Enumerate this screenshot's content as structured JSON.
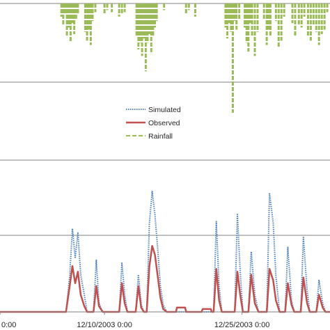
{
  "chart_data": {
    "type": "line",
    "title": "",
    "xlabel": "",
    "ylabel": "",
    "grid": true,
    "legend_placement": "center",
    "colors": {
      "simulated": "#4f81bd",
      "observed": "#c0504d",
      "rainfall": "#9bbb59",
      "grid": "#808080"
    },
    "x_tick_labels": [
      {
        "label": "0:00",
        "day": 0
      },
      {
        "label": "12/10/2003 0:00",
        "day": 11.4
      },
      {
        "label": "12/25/2003 0:00",
        "day": 26.4
      }
    ],
    "x_range_days": [
      0,
      36
    ],
    "discharge_panel": {
      "series": [
        {
          "name": "Simulated",
          "style": "dotted",
          "points": [
            [
              0,
              0
            ],
            [
              7.2,
              0
            ],
            [
              7.6,
              0.25
            ],
            [
              7.9,
              0.58
            ],
            [
              8.2,
              0.38
            ],
            [
              8.5,
              0.55
            ],
            [
              8.8,
              0.26
            ],
            [
              9.2,
              0.12
            ],
            [
              9.5,
              0
            ],
            [
              10.2,
              0
            ],
            [
              10.5,
              0.36
            ],
            [
              10.8,
              0.06
            ],
            [
              11.2,
              0
            ],
            [
              13.0,
              0
            ],
            [
              13.3,
              0.34
            ],
            [
              13.6,
              0.12
            ],
            [
              13.9,
              0
            ],
            [
              14.8,
              0
            ],
            [
              15.1,
              0.26
            ],
            [
              15.4,
              0.05
            ],
            [
              15.7,
              0
            ],
            [
              16.0,
              0
            ],
            [
              16.3,
              0.62
            ],
            [
              16.6,
              0.84
            ],
            [
              16.9,
              0.68
            ],
            [
              17.2,
              0.44
            ],
            [
              17.5,
              0.18
            ],
            [
              17.8,
              0.05
            ],
            [
              18.2,
              0
            ],
            [
              23.3,
              0
            ],
            [
              23.6,
              0.63
            ],
            [
              23.9,
              0.18
            ],
            [
              24.2,
              0
            ],
            [
              25.6,
              0
            ],
            [
              25.9,
              0.68
            ],
            [
              26.2,
              0.28
            ],
            [
              26.5,
              0
            ],
            [
              27.1,
              0
            ],
            [
              27.4,
              0.42
            ],
            [
              27.8,
              0.12
            ],
            [
              28.2,
              0
            ],
            [
              29.1,
              0
            ],
            [
              29.4,
              0.83
            ],
            [
              29.8,
              0.62
            ],
            [
              30.1,
              0.25
            ],
            [
              30.5,
              0
            ],
            [
              31.1,
              0
            ],
            [
              31.4,
              0.45
            ],
            [
              31.8,
              0.08
            ],
            [
              32.1,
              0
            ],
            [
              32.8,
              0
            ],
            [
              33.1,
              0.52
            ],
            [
              33.5,
              0.15
            ],
            [
              33.8,
              0
            ],
            [
              34.5,
              0
            ],
            [
              34.8,
              0.22
            ],
            [
              35.2,
              0.06
            ],
            [
              35.5,
              0
            ],
            [
              36,
              0
            ]
          ]
        },
        {
          "name": "Observed",
          "style": "solid",
          "points": [
            [
              0,
              0
            ],
            [
              7.2,
              0
            ],
            [
              7.6,
              0.18
            ],
            [
              7.9,
              0.32
            ],
            [
              8.2,
              0.2
            ],
            [
              8.5,
              0.28
            ],
            [
              8.8,
              0.12
            ],
            [
              9.2,
              0.04
            ],
            [
              9.5,
              0
            ],
            [
              10.2,
              0
            ],
            [
              10.5,
              0.18
            ],
            [
              10.8,
              0.04
            ],
            [
              11.2,
              0
            ],
            [
              13.0,
              0
            ],
            [
              13.3,
              0.2
            ],
            [
              13.6,
              0.06
            ],
            [
              13.9,
              0
            ],
            [
              14.8,
              0
            ],
            [
              15.1,
              0.18
            ],
            [
              15.4,
              0.03
            ],
            [
              15.7,
              0
            ],
            [
              16.0,
              0
            ],
            [
              16.3,
              0.32
            ],
            [
              16.6,
              0.46
            ],
            [
              16.9,
              0.4
            ],
            [
              17.2,
              0.25
            ],
            [
              17.5,
              0.1
            ],
            [
              17.8,
              0.02
            ],
            [
              18.2,
              0
            ],
            [
              19.2,
              0
            ],
            [
              19.3,
              0.03
            ],
            [
              20.2,
              0.03
            ],
            [
              20.3,
              0
            ],
            [
              22.0,
              0
            ],
            [
              22.1,
              0.02
            ],
            [
              23.0,
              0.02
            ],
            [
              23.1,
              0
            ],
            [
              23.3,
              0
            ],
            [
              23.6,
              0.3
            ],
            [
              23.9,
              0.08
            ],
            [
              24.2,
              0
            ],
            [
              25.6,
              0
            ],
            [
              25.9,
              0.28
            ],
            [
              26.2,
              0.12
            ],
            [
              26.5,
              0
            ],
            [
              27.1,
              0
            ],
            [
              27.4,
              0.26
            ],
            [
              27.8,
              0.06
            ],
            [
              28.2,
              0
            ],
            [
              29.1,
              0
            ],
            [
              29.4,
              0.3
            ],
            [
              29.8,
              0.22
            ],
            [
              30.1,
              0.08
            ],
            [
              30.5,
              0
            ],
            [
              31.1,
              0
            ],
            [
              31.4,
              0.2
            ],
            [
              31.8,
              0.05
            ],
            [
              32.1,
              0
            ],
            [
              32.8,
              0
            ],
            [
              33.1,
              0.24
            ],
            [
              33.5,
              0.06
            ],
            [
              33.8,
              0
            ],
            [
              34.5,
              0
            ],
            [
              34.8,
              0.12
            ],
            [
              35.2,
              0.03
            ],
            [
              35.5,
              0
            ],
            [
              36,
              0
            ]
          ]
        }
      ]
    },
    "rainfall_panel": {
      "series": [
        {
          "name": "Rainfall",
          "style": "dashed",
          "bars": [
            [
              6.7,
              0.12
            ],
            [
              6.9,
              0.2
            ],
            [
              7.1,
              0.1
            ],
            [
              7.3,
              0.3
            ],
            [
              7.5,
              0.22
            ],
            [
              7.7,
              0.35
            ],
            [
              7.9,
              0.18
            ],
            [
              8.1,
              0.28
            ],
            [
              8.3,
              0.14
            ],
            [
              8.5,
              0.1
            ],
            [
              9.3,
              0.26
            ],
            [
              9.5,
              0.34
            ],
            [
              9.7,
              0.24
            ],
            [
              9.9,
              0.38
            ],
            [
              10.1,
              0.16
            ],
            [
              10.4,
              0.08
            ],
            [
              11.4,
              0.1
            ],
            [
              11.7,
              0.06
            ],
            [
              12.2,
              0.08
            ],
            [
              13.0,
              0.12
            ],
            [
              13.3,
              0.1
            ],
            [
              13.6,
              0.08
            ],
            [
              14.9,
              0.3
            ],
            [
              15.1,
              0.42
            ],
            [
              15.3,
              0.36
            ],
            [
              15.5,
              0.48
            ],
            [
              15.7,
              0.32
            ],
            [
              15.9,
              0.62
            ],
            [
              16.1,
              0.36
            ],
            [
              16.3,
              0.28
            ],
            [
              16.5,
              0.46
            ],
            [
              16.7,
              0.3
            ],
            [
              16.9,
              0.22
            ],
            [
              17.1,
              0.16
            ],
            [
              17.9,
              0.06
            ],
            [
              20.3,
              0.1
            ],
            [
              20.6,
              0.06
            ],
            [
              21.3,
              0.12
            ],
            [
              24.6,
              0.22
            ],
            [
              24.8,
              0.32
            ],
            [
              25.0,
              0.18
            ],
            [
              25.2,
              0.26
            ],
            [
              25.4,
              1.0
            ],
            [
              25.6,
              0.16
            ],
            [
              25.8,
              0.24
            ],
            [
              26.1,
              0.14
            ],
            [
              26.7,
              0.22
            ],
            [
              26.9,
              0.36
            ],
            [
              27.1,
              0.44
            ],
            [
              27.3,
              0.18
            ],
            [
              27.5,
              0.3
            ],
            [
              27.8,
              0.48
            ],
            [
              28.1,
              0.26
            ],
            [
              28.8,
              0.14
            ],
            [
              29.1,
              0.38
            ],
            [
              29.3,
              0.24
            ],
            [
              29.5,
              0.3
            ],
            [
              30.1,
              0.16
            ],
            [
              30.4,
              0.4
            ],
            [
              30.7,
              0.34
            ],
            [
              31.0,
              0.12
            ],
            [
              31.9,
              0.18
            ],
            [
              32.2,
              0.3
            ],
            [
              32.6,
              0.2
            ],
            [
              32.9,
              0.22
            ],
            [
              33.2,
              0.12
            ],
            [
              33.6,
              0.3
            ],
            [
              33.9,
              0.34
            ],
            [
              34.2,
              0.2
            ],
            [
              34.5,
              0.26
            ],
            [
              34.8,
              0.38
            ],
            [
              35.1,
              0.28
            ],
            [
              35.4,
              0.24
            ],
            [
              35.7,
              0.08
            ]
          ]
        }
      ]
    },
    "legend": {
      "entries": [
        {
          "label": "Simulated",
          "style": "dotted",
          "color": "#4f81bd"
        },
        {
          "label": "Observed",
          "style": "solid",
          "color": "#c0504d"
        },
        {
          "label": "Rainfall",
          "style": "dashed",
          "color": "#9bbb59"
        }
      ]
    }
  }
}
